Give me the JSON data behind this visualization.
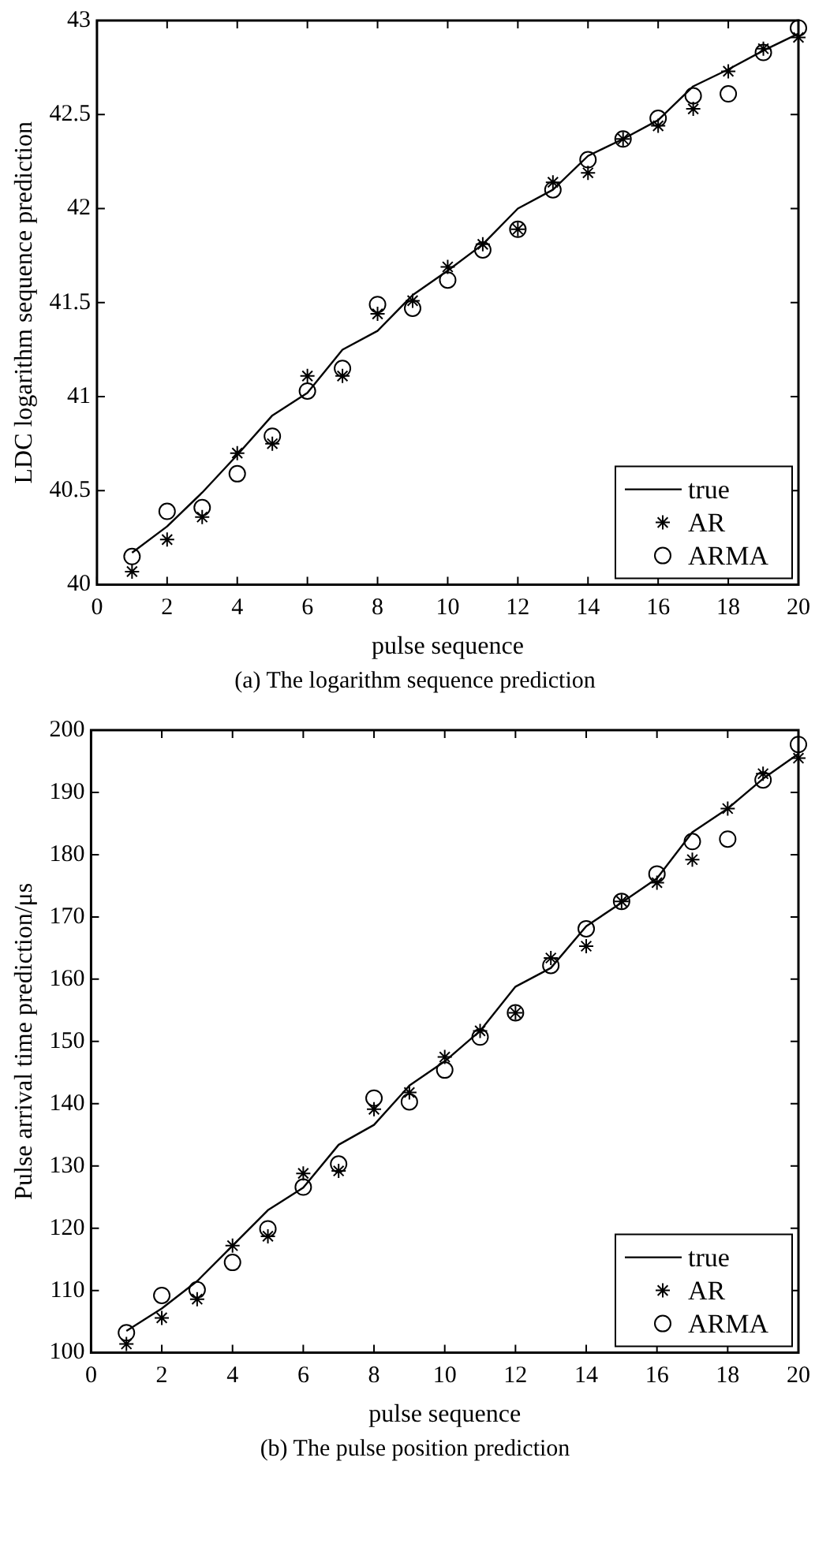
{
  "chart_data": [
    {
      "type": "line",
      "xlabel": "pulse sequence",
      "ylabel": "LDC logarithm sequence prediction",
      "x": [
        1,
        2,
        3,
        4,
        5,
        6,
        7,
        8,
        9,
        10,
        11,
        12,
        13,
        14,
        15,
        16,
        17,
        18,
        19,
        20
      ],
      "xlim": [
        0,
        20
      ],
      "xticks": [
        0,
        2,
        4,
        6,
        8,
        10,
        12,
        14,
        16,
        18,
        20
      ],
      "ylim": [
        40,
        43
      ],
      "yticks": [
        40,
        40.5,
        41,
        41.5,
        42,
        42.5,
        43
      ],
      "grid": false,
      "legend": "bottom right",
      "annotations": [
        "(a) The logarithm sequence prediction"
      ],
      "series": [
        {
          "name": "true",
          "type": "line",
          "color": "#000000",
          "marker": "none",
          "line_style": "solid",
          "values": [
            40.17,
            40.31,
            40.49,
            40.69,
            40.9,
            41.02,
            41.25,
            41.35,
            41.54,
            41.67,
            41.81,
            42.0,
            42.1,
            42.28,
            42.37,
            42.47,
            42.65,
            42.74,
            42.84,
            42.93
          ]
        },
        {
          "name": "AR",
          "type": "scatter",
          "color": "#000000",
          "marker": "cross",
          "values": [
            40.07,
            40.24,
            40.36,
            40.7,
            40.75,
            41.11,
            41.11,
            41.44,
            41.51,
            41.69,
            41.81,
            41.89,
            42.14,
            42.19,
            42.37,
            42.44,
            42.53,
            42.73,
            42.85,
            42.91
          ]
        },
        {
          "name": "ARMA",
          "type": "scatter",
          "color": "#000000",
          "marker": "circle",
          "values": [
            40.15,
            40.39,
            40.41,
            40.59,
            40.79,
            41.03,
            41.15,
            41.49,
            41.47,
            41.62,
            41.78,
            41.89,
            42.1,
            42.26,
            42.37,
            42.48,
            42.6,
            42.61,
            42.83,
            42.96
          ]
        }
      ]
    },
    {
      "type": "line",
      "xlabel": "pulse sequence",
      "ylabel": "Pulse arrival time prediction/μs",
      "x": [
        1,
        2,
        3,
        4,
        5,
        6,
        7,
        8,
        9,
        10,
        11,
        12,
        13,
        14,
        15,
        16,
        17,
        18,
        19,
        20
      ],
      "xlim": [
        0,
        20
      ],
      "xticks": [
        0,
        2,
        4,
        6,
        8,
        10,
        12,
        14,
        16,
        18,
        20
      ],
      "ylim": [
        100,
        200
      ],
      "yticks": [
        100,
        110,
        120,
        130,
        140,
        150,
        160,
        170,
        180,
        190,
        200
      ],
      "grid": false,
      "legend": "bottom right",
      "annotations": [
        "(b) The pulse position prediction"
      ],
      "series": [
        {
          "name": "true",
          "type": "line",
          "color": "#000000",
          "marker": "none",
          "line_style": "solid",
          "values": [
            103.5,
            107.1,
            111.5,
            117.2,
            122.9,
            126.5,
            133.4,
            136.6,
            142.9,
            146.8,
            151.7,
            158.8,
            161.8,
            168.5,
            172.3,
            176.2,
            183.6,
            187.4,
            192.2,
            196.2
          ]
        },
        {
          "name": "AR",
          "type": "scatter",
          "color": "#000000",
          "marker": "cross",
          "values": [
            101.4,
            105.6,
            108.6,
            117.2,
            118.7,
            128.8,
            129.2,
            139.1,
            141.8,
            147.5,
            151.7,
            154.6,
            163.4,
            165.3,
            172.5,
            175.5,
            179.2,
            187.4,
            193.0,
            195.5
          ]
        },
        {
          "name": "ARMA",
          "type": "scatter",
          "color": "#000000",
          "marker": "circle",
          "values": [
            103.2,
            109.2,
            110.1,
            114.5,
            119.9,
            126.6,
            130.3,
            140.9,
            140.3,
            145.4,
            150.7,
            154.6,
            162.2,
            168.1,
            172.5,
            176.9,
            182.1,
            182.5,
            192.0,
            197.7
          ]
        }
      ]
    }
  ]
}
